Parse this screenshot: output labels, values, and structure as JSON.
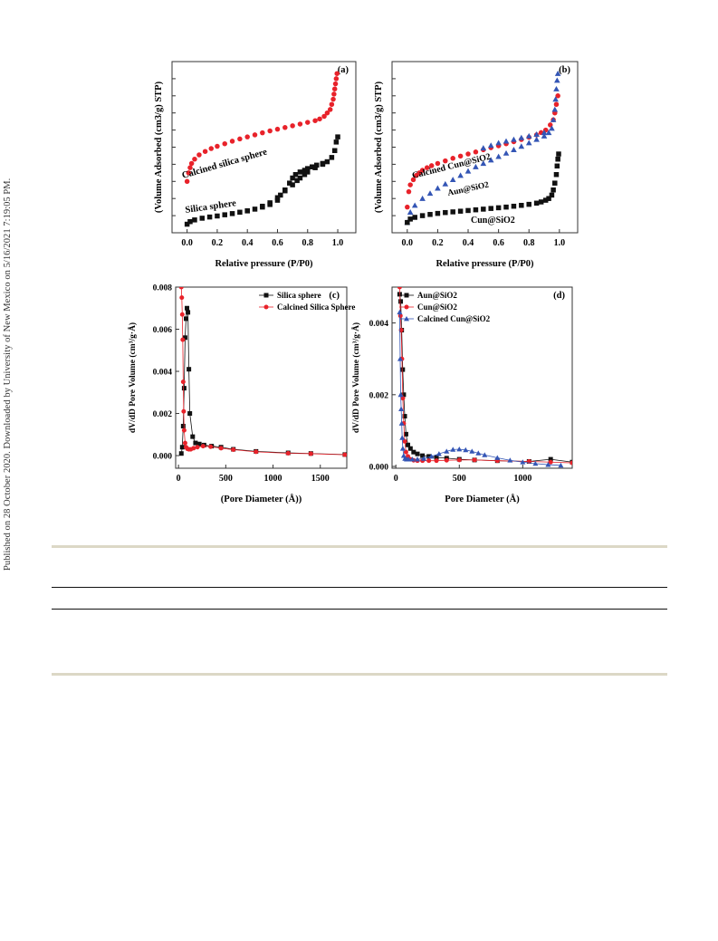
{
  "sidebar_text": "Published on 28 October 2020. Downloaded by University of New Mexico on 5/16/2021 7:19:05 PM.",
  "colors": {
    "black": "#111111",
    "red": "#e8222a",
    "blue": "#3355b5"
  },
  "chart_data": [
    {
      "type": "scatter",
      "panel_label": "(a)",
      "xlabel": "Relative pressure (P/P0)",
      "ylabel": "(Volume Adsorbed (cm3/g) STP)",
      "xlim": [
        -0.1,
        1.12
      ],
      "ylim": [
        0,
        10
      ],
      "xticks": [
        "0.0",
        "0.2",
        "0.4",
        "0.6",
        "0.8",
        "1.0"
      ],
      "annotations": [
        "Calcined silica sphere",
        "Silica sphere"
      ],
      "series": [
        {
          "color": "#e8222a",
          "marker": "circle",
          "x": [
            0.0,
            0.01,
            0.02,
            0.03,
            0.05,
            0.08,
            0.12,
            0.16,
            0.2,
            0.25,
            0.3,
            0.35,
            0.4,
            0.45,
            0.5,
            0.55,
            0.6,
            0.65,
            0.7,
            0.75,
            0.8,
            0.85,
            0.88,
            0.91,
            0.93,
            0.95,
            0.96,
            0.97,
            0.975,
            0.98,
            0.985,
            0.99,
            0.995
          ],
          "y": [
            3.0,
            3.5,
            3.8,
            4.05,
            4.3,
            4.55,
            4.75,
            4.92,
            5.05,
            5.2,
            5.35,
            5.48,
            5.6,
            5.72,
            5.84,
            5.95,
            6.05,
            6.15,
            6.25,
            6.35,
            6.45,
            6.55,
            6.65,
            6.8,
            7.0,
            7.2,
            7.5,
            7.8,
            8.1,
            8.4,
            8.7,
            9.0,
            9.3
          ]
        },
        {
          "color": "#111111",
          "marker": "square",
          "x": [
            0.0,
            0.02,
            0.05,
            0.1,
            0.15,
            0.2,
            0.25,
            0.3,
            0.35,
            0.4,
            0.45,
            0.5,
            0.55,
            0.6,
            0.62,
            0.65,
            0.68,
            0.7,
            0.72,
            0.75,
            0.78,
            0.8,
            0.83,
            0.86,
            0.9,
            0.93,
            0.96,
            0.98,
            0.99,
            1.0
          ],
          "y": [
            0.5,
            0.65,
            0.75,
            0.85,
            0.92,
            0.98,
            1.05,
            1.12,
            1.2,
            1.28,
            1.38,
            1.5,
            1.65,
            1.9,
            2.2,
            2.5,
            2.9,
            3.2,
            3.4,
            3.55,
            3.65,
            3.75,
            3.85,
            3.95,
            4.05,
            4.15,
            4.4,
            4.8,
            5.3,
            5.6
          ]
        },
        {
          "color": "#111111",
          "marker": "square",
          "x": [
            0.4,
            0.5,
            0.55,
            0.6,
            0.65,
            0.7,
            0.73,
            0.75,
            0.78,
            0.8,
            0.85,
            0.9
          ],
          "y": [
            1.28,
            1.55,
            1.75,
            2.05,
            2.45,
            2.8,
            3.05,
            3.2,
            3.4,
            3.55,
            3.8,
            4.0
          ]
        }
      ]
    },
    {
      "type": "scatter",
      "panel_label": "(b)",
      "xlabel": "Relative pressure (P/P0)",
      "ylabel": "(Volume Adsorbed (cm3/g) STP)",
      "xlim": [
        -0.1,
        1.12
      ],
      "ylim": [
        0,
        10
      ],
      "xticks": [
        "0.0",
        "0.2",
        "0.4",
        "0.6",
        "0.8",
        "1.0"
      ],
      "annotations": [
        "Calcined Cun@SiO2",
        "Aun@SiO2",
        "Cun@SiO2"
      ],
      "series": [
        {
          "color": "#e8222a",
          "marker": "circle",
          "x": [
            0.0,
            0.01,
            0.02,
            0.04,
            0.06,
            0.08,
            0.1,
            0.13,
            0.16,
            0.2,
            0.25,
            0.3,
            0.35,
            0.4,
            0.45,
            0.5,
            0.55,
            0.6,
            0.65,
            0.7,
            0.75,
            0.8,
            0.85,
            0.88,
            0.91,
            0.94,
            0.96,
            0.97,
            0.98,
            0.99
          ],
          "y": [
            1.5,
            2.4,
            2.8,
            3.1,
            3.35,
            3.5,
            3.65,
            3.8,
            3.92,
            4.05,
            4.2,
            4.35,
            4.48,
            4.6,
            4.72,
            4.85,
            4.97,
            5.08,
            5.2,
            5.32,
            5.45,
            5.58,
            5.72,
            5.85,
            6.0,
            6.3,
            6.6,
            7.0,
            7.5,
            8.0
          ]
        },
        {
          "color": "#3355b5",
          "marker": "triangle",
          "x": [
            0.0,
            0.02,
            0.05,
            0.1,
            0.15,
            0.2,
            0.25,
            0.3,
            0.35,
            0.4,
            0.45,
            0.5,
            0.55,
            0.6,
            0.65,
            0.7,
            0.75,
            0.8,
            0.85,
            0.9,
            0.93,
            0.95,
            0.96,
            0.97,
            0.975,
            0.98,
            0.985,
            0.99
          ],
          "y": [
            0.6,
            1.2,
            1.6,
            2.0,
            2.3,
            2.6,
            2.85,
            3.1,
            3.35,
            3.6,
            3.85,
            4.05,
            4.25,
            4.45,
            4.65,
            4.85,
            5.05,
            5.25,
            5.45,
            5.65,
            5.85,
            6.1,
            6.6,
            7.2,
            7.8,
            8.4,
            8.9,
            9.3
          ]
        },
        {
          "color": "#3355b5",
          "marker": "triangle",
          "x": [
            0.5,
            0.55,
            0.6,
            0.65,
            0.7,
            0.75,
            0.8,
            0.85,
            0.9
          ],
          "y": [
            4.95,
            5.1,
            5.25,
            5.35,
            5.45,
            5.55,
            5.65,
            5.75,
            5.85
          ]
        },
        {
          "color": "#111111",
          "marker": "square",
          "x": [
            0.0,
            0.02,
            0.05,
            0.1,
            0.15,
            0.2,
            0.25,
            0.3,
            0.35,
            0.4,
            0.45,
            0.5,
            0.55,
            0.6,
            0.65,
            0.7,
            0.75,
            0.8,
            0.85,
            0.88,
            0.91,
            0.93,
            0.95,
            0.96,
            0.97,
            0.98,
            0.985,
            0.99,
            0.995
          ],
          "y": [
            0.6,
            0.8,
            0.9,
            1.0,
            1.07,
            1.13,
            1.18,
            1.22,
            1.26,
            1.3,
            1.34,
            1.38,
            1.42,
            1.46,
            1.5,
            1.55,
            1.6,
            1.66,
            1.73,
            1.8,
            1.9,
            2.0,
            2.2,
            2.5,
            2.9,
            3.4,
            3.9,
            4.3,
            4.6
          ]
        }
      ]
    },
    {
      "type": "line",
      "panel_label": "(c)",
      "xlabel": "(Pore Diameter (Å))",
      "ylabel": "dV/dD Pore Volume (cm³/g·Å)",
      "xlim": [
        -30,
        1780
      ],
      "ylim": [
        -0.0006,
        0.008
      ],
      "xticks": [
        0,
        500,
        1000,
        1500
      ],
      "yticks": [
        "0.000",
        "0.002",
        "0.004",
        "0.006",
        "0.008"
      ],
      "series": [
        {
          "name": "Silica sphere",
          "color": "#111111",
          "marker": "square",
          "x": [
            30,
            40,
            50,
            60,
            70,
            80,
            90,
            100,
            110,
            120,
            150,
            180,
            220,
            270,
            350,
            450,
            580,
            820,
            1160,
            1400,
            1760
          ],
          "y": [
            0.0001,
            0.0004,
            0.0014,
            0.0032,
            0.0056,
            0.0065,
            0.007,
            0.0068,
            0.0041,
            0.002,
            0.0009,
            0.0006,
            0.00055,
            0.0005,
            0.00045,
            0.0004,
            0.0003,
            0.0002,
            0.00013,
            0.0001,
            5e-05
          ]
        },
        {
          "name": "Calcined Silica Sphere",
          "color": "#e8222a",
          "marker": "circle",
          "x": [
            30,
            35,
            40,
            45,
            50,
            55,
            60,
            70,
            80,
            95,
            110,
            130,
            160,
            200,
            260,
            340,
            450,
            580,
            820,
            1160,
            1400,
            1760
          ],
          "y": [
            0.008,
            0.0075,
            0.0067,
            0.0055,
            0.0035,
            0.0021,
            0.0012,
            0.0006,
            0.0004,
            0.00032,
            0.0003,
            0.0003,
            0.00035,
            0.0004,
            0.00045,
            0.00042,
            0.00035,
            0.00028,
            0.00018,
            0.00011,
            9e-05,
            4e-05
          ]
        }
      ]
    },
    {
      "type": "line",
      "panel_label": "(d)",
      "xlabel": "Pore Diameter (Å)",
      "ylabel": "dV/dD Pore Volume (cm³/g·Å)",
      "xlim": [
        -30,
        1390
      ],
      "ylim": [
        -5e-05,
        0.005
      ],
      "xticks": [
        0,
        500,
        1000
      ],
      "yticks": [
        "0.000",
        "0.002",
        "0.004"
      ],
      "series": [
        {
          "name": "Aun@SiO2",
          "color": "#111111",
          "marker": "square",
          "x": [
            30,
            38,
            46,
            54,
            62,
            70,
            80,
            95,
            115,
            140,
            170,
            210,
            260,
            320,
            400,
            500,
            620,
            800,
            1050,
            1220,
            1390
          ],
          "y": [
            0.0048,
            0.0046,
            0.0038,
            0.0027,
            0.002,
            0.0014,
            0.0009,
            0.0006,
            0.0005,
            0.0004,
            0.00035,
            0.0003,
            0.00028,
            0.00025,
            0.00023,
            0.0002,
            0.00018,
            0.00016,
            0.00014,
            0.0002,
            0.00012
          ]
        },
        {
          "name": "Cun@SiO2",
          "color": "#e8222a",
          "marker": "circle",
          "x": [
            30,
            36,
            42,
            48,
            55,
            62,
            70,
            80,
            95,
            115,
            140,
            170,
            210,
            260,
            320,
            400,
            500,
            620,
            800,
            1050,
            1220,
            1390
          ],
          "y": [
            0.005,
            0.0042,
            0.0038,
            0.003,
            0.0019,
            0.0012,
            0.0007,
            0.0004,
            0.00028,
            0.0002,
            0.00017,
            0.00016,
            0.00016,
            0.00016,
            0.00016,
            0.00017,
            0.00018,
            0.00018,
            0.00016,
            0.00014,
            0.00012,
            0.0001
          ]
        },
        {
          "name": "Calcined Cun@SiO2",
          "color": "#3355b5",
          "marker": "triangle",
          "x": [
            30,
            34,
            38,
            42,
            46,
            50,
            55,
            62,
            72,
            85,
            100,
            130,
            170,
            220,
            280,
            340,
            400,
            450,
            500,
            550,
            600,
            650,
            700,
            800,
            900,
            1000,
            1100,
            1200,
            1300
          ],
          "y": [
            0.0043,
            0.003,
            0.002,
            0.0016,
            0.0012,
            0.0008,
            0.0005,
            0.0003,
            0.00022,
            0.0002,
            0.0002,
            0.0002,
            0.0002,
            0.00022,
            0.00028,
            0.00035,
            0.00042,
            0.00047,
            0.00048,
            0.00046,
            0.00042,
            0.00037,
            0.00032,
            0.00024,
            0.00017,
            0.00012,
            8e-05,
            5e-05,
            3e-05
          ]
        }
      ]
    }
  ]
}
